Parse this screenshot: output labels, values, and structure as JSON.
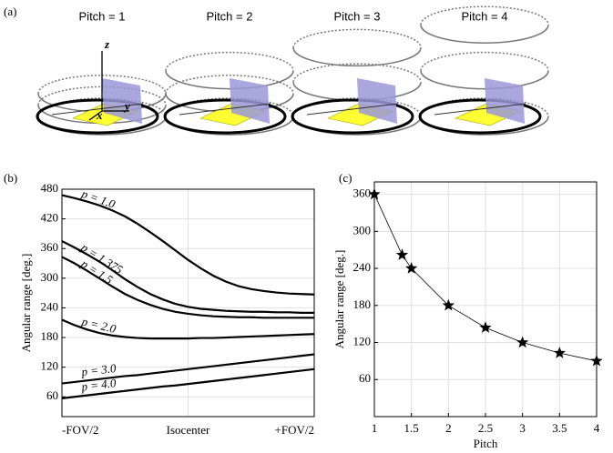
{
  "figure": {
    "panel_labels": [
      "(a)",
      "(b)",
      "(c)"
    ],
    "illustration": {
      "titles": [
        "Pitch = 1",
        "Pitch = 2",
        "Pitch = 3",
        "Pitch = 4"
      ],
      "axis_labels": [
        "z",
        "x",
        "y"
      ]
    }
  },
  "chart_data": [
    {
      "type": "line",
      "ylabel": "Angular range [deg.]",
      "categories": [
        "-FOV/2",
        null,
        null,
        null,
        null,
        null,
        null,
        null,
        null,
        null,
        "Isocenter",
        null,
        null,
        null,
        null,
        null,
        null,
        null,
        null,
        null,
        "+FOV/2"
      ],
      "series": [
        {
          "name": "p = 1.0",
          "color": "#000000",
          "values": [
            468,
            462,
            455,
            447,
            437,
            425,
            410,
            393,
            375,
            356,
            337,
            320,
            305,
            293,
            284,
            278,
            274,
            271,
            269,
            268,
            267
          ]
        },
        {
          "name": "p = 1.375",
          "color": "#000000",
          "values": [
            375,
            362,
            348,
            333,
            316,
            298,
            282,
            268,
            257,
            248,
            242,
            238,
            236,
            234,
            233,
            232,
            232,
            231,
            231,
            230,
            230
          ]
        },
        {
          "name": "p = 1.5",
          "color": "#000000",
          "values": [
            343,
            330,
            315,
            299,
            283,
            268,
            256,
            246,
            238,
            232,
            228,
            225,
            223,
            222,
            221,
            221,
            220,
            220,
            220,
            220,
            220
          ]
        },
        {
          "name": "p = 2.0",
          "color": "#000000",
          "values": [
            216,
            205,
            196,
            189,
            184,
            181,
            179,
            178,
            178,
            178,
            178,
            179,
            179,
            180,
            181,
            182,
            183,
            184,
            185,
            186,
            187
          ]
        },
        {
          "name": "p = 3.0",
          "color": "#000000",
          "values": [
            87,
            90,
            93,
            96,
            99,
            102,
            104,
            107,
            110,
            113,
            116,
            119,
            122,
            125,
            128,
            131,
            134,
            137,
            140,
            143,
            146
          ]
        },
        {
          "name": "p = 4.0",
          "color": "#000000",
          "values": [
            57,
            60,
            63,
            66,
            69,
            72,
            75,
            78,
            81,
            83,
            86,
            89,
            92,
            95,
            98,
            101,
            104,
            107,
            110,
            113,
            116
          ]
        }
      ],
      "ylim": [
        20,
        480
      ],
      "yticks": [
        60,
        120,
        180,
        240,
        300,
        360,
        420,
        480
      ],
      "grid": true
    },
    {
      "type": "line",
      "marker": "star",
      "xlabel": "Pitch",
      "ylabel": "Angular range [deg.]",
      "x": [
        1,
        1.375,
        1.5,
        2,
        2.5,
        3,
        3.5,
        4
      ],
      "values": [
        360,
        261.8,
        240,
        180,
        144,
        120,
        102.9,
        90
      ],
      "color": "#000000",
      "xlim": [
        1,
        4
      ],
      "xticks": [
        1,
        1.5,
        2,
        2.5,
        3,
        3.5,
        4
      ],
      "ylim": [
        0,
        380
      ],
      "yticks": [
        60,
        120,
        180,
        240,
        300,
        360
      ],
      "grid": true
    }
  ]
}
